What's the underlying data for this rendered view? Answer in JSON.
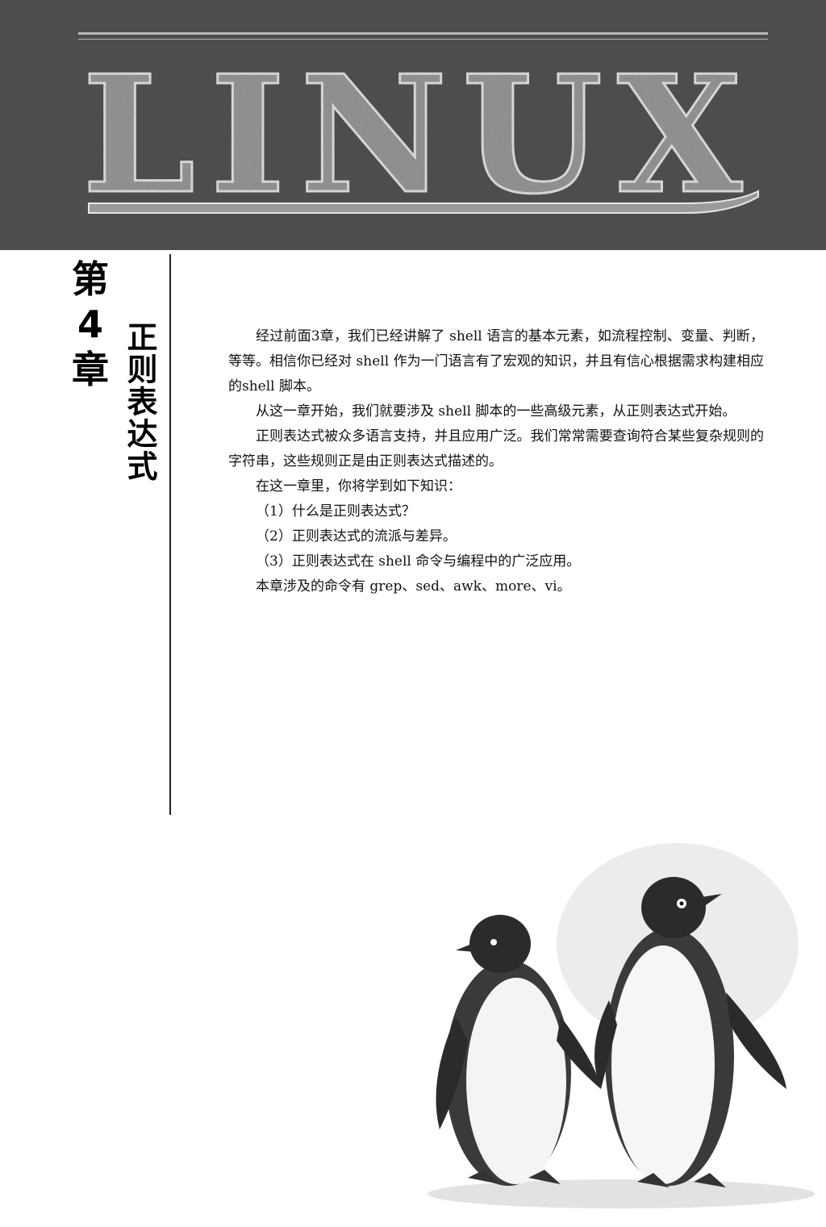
{
  "header": {
    "logo_text": "LINUX"
  },
  "chapter": {
    "number_label": "第4章",
    "title": "正则表达式"
  },
  "body": {
    "paragraphs": [
      "经过前面3章，我们已经讲解了 shell 语言的基本元素，如流程控制、变量、判断，等等。相信你已经对 shell 作为一门语言有了宏观的知识，并且有信心根据需求构建相应的shell 脚本。",
      "从这一章开始，我们就要涉及 shell 脚本的一些高级元素，从正则表达式开始。",
      "正则表达式被众多语言支持，并且应用广泛。我们常常需要查询符合某些复杂规则的字符串，这些规则正是由正则表达式描述的。",
      "在这一章里，你将学到如下知识："
    ],
    "items": [
      "（1）什么是正则表达式？",
      "（2）正则表达式的流派与差异。",
      "（3）正则表达式在 shell 命令与编程中的广泛应用。"
    ],
    "closing": "本章涉及的命令有 grep、sed、awk、more、vi。"
  },
  "colors": {
    "header_band": "#4d4d4d",
    "logo_fill": "#9a9a9a",
    "text": "#111111"
  }
}
